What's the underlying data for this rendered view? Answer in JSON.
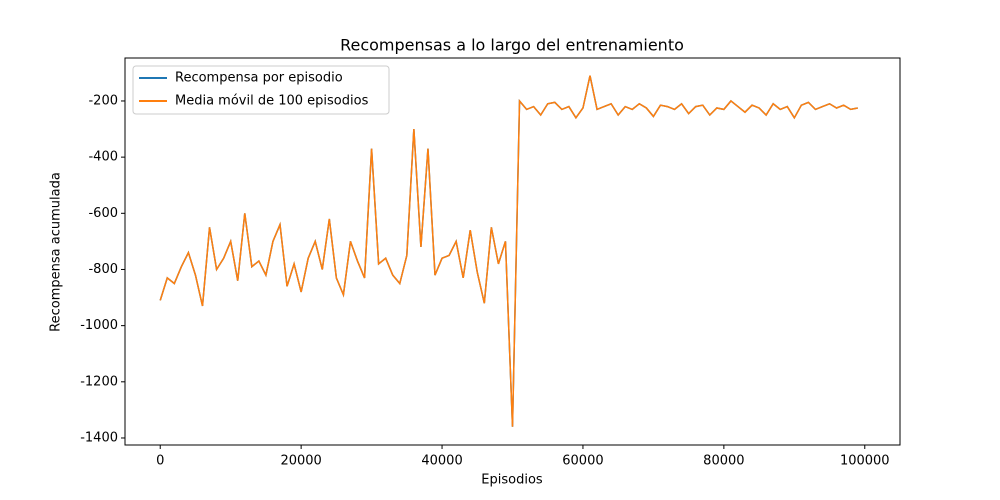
{
  "chart_data": {
    "type": "line",
    "title": "Recompensas a lo largo del entrenamiento",
    "x_label": "Episodios",
    "y_label": "Recompensa acumulada",
    "x": [
      0,
      1000,
      2000,
      3000,
      4000,
      5000,
      6000,
      7000,
      8000,
      9000,
      10000,
      11000,
      12000,
      13000,
      14000,
      15000,
      16000,
      17000,
      18000,
      19000,
      20000,
      21000,
      22000,
      23000,
      24000,
      25000,
      26000,
      27000,
      28000,
      29000,
      30000,
      31000,
      32000,
      33000,
      34000,
      35000,
      36000,
      37000,
      38000,
      39000,
      40000,
      41000,
      42000,
      43000,
      44000,
      45000,
      46000,
      47000,
      48000,
      49000,
      50000,
      51000,
      52000,
      53000,
      54000,
      55000,
      56000,
      57000,
      58000,
      59000,
      60000,
      61000,
      62000,
      63000,
      64000,
      65000,
      66000,
      67000,
      68000,
      69000,
      70000,
      71000,
      72000,
      73000,
      74000,
      75000,
      76000,
      77000,
      78000,
      79000,
      80000,
      81000,
      82000,
      83000,
      84000,
      85000,
      86000,
      87000,
      88000,
      89000,
      90000,
      91000,
      92000,
      93000,
      94000,
      95000,
      96000,
      97000,
      98000,
      99000
    ],
    "series": [
      {
        "name": "Recompensa por episodio",
        "color": "#1f77b4",
        "values": [
          -910,
          -830,
          -850,
          -790,
          -740,
          -820,
          -930,
          -650,
          -800,
          -760,
          -700,
          -840,
          -600,
          -790,
          -770,
          -820,
          -700,
          -640,
          -860,
          -780,
          -880,
          -760,
          -700,
          -800,
          -620,
          -830,
          -890,
          -700,
          -770,
          -830,
          -370,
          -780,
          -760,
          -820,
          -850,
          -750,
          -300,
          -720,
          -370,
          -820,
          -760,
          -750,
          -700,
          -830,
          -660,
          -810,
          -920,
          -650,
          -780,
          -700,
          -1360,
          -200,
          -230,
          -220,
          -250,
          -210,
          -205,
          -230,
          -220,
          -260,
          -225,
          -110,
          -230,
          -220,
          -210,
          -250,
          -220,
          -230,
          -210,
          -225,
          -255,
          -215,
          -220,
          -230,
          -210,
          -245,
          -220,
          -215,
          -250,
          -225,
          -230,
          -200,
          -220,
          -240,
          -215,
          -225,
          -250,
          -210,
          -230,
          -220,
          -260,
          -215,
          -205,
          -230,
          -220,
          -210,
          -225,
          -215,
          -230,
          -225
        ]
      },
      {
        "name": "Media móvil de 100 episodios",
        "color": "#ff7f0e",
        "values": [
          -910,
          -830,
          -850,
          -790,
          -740,
          -820,
          -930,
          -650,
          -800,
          -760,
          -700,
          -840,
          -600,
          -790,
          -770,
          -820,
          -700,
          -640,
          -860,
          -780,
          -880,
          -760,
          -700,
          -800,
          -620,
          -830,
          -890,
          -700,
          -770,
          -830,
          -370,
          -780,
          -760,
          -820,
          -850,
          -750,
          -300,
          -720,
          -370,
          -820,
          -760,
          -750,
          -700,
          -830,
          -660,
          -810,
          -920,
          -650,
          -780,
          -700,
          -1360,
          -200,
          -230,
          -220,
          -250,
          -210,
          -205,
          -230,
          -220,
          -260,
          -225,
          -110,
          -230,
          -220,
          -210,
          -250,
          -220,
          -230,
          -210,
          -225,
          -255,
          -215,
          -220,
          -230,
          -210,
          -245,
          -220,
          -215,
          -250,
          -225,
          -230,
          -200,
          -220,
          -240,
          -215,
          -225,
          -250,
          -210,
          -230,
          -220,
          -260,
          -215,
          -205,
          -230,
          -220,
          -210,
          -225,
          -215,
          -230,
          -225
        ]
      }
    ],
    "xlim": [
      -5000,
      105000
    ],
    "xticks": [
      0,
      20000,
      40000,
      60000,
      80000,
      100000
    ],
    "ylim": [
      -1425,
      -47
    ],
    "yticks": [
      -1400,
      -1200,
      -1000,
      -800,
      -600,
      -400,
      -200
    ],
    "legend": "upper left"
  }
}
